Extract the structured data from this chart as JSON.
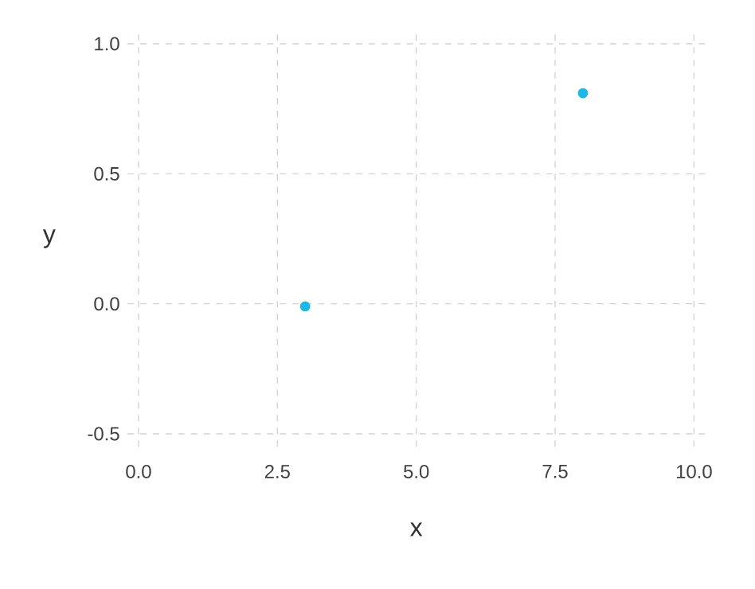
{
  "chart_data": {
    "type": "scatter",
    "xlabel": "x",
    "ylabel": "y",
    "x": [
      3,
      8
    ],
    "values": [
      -0.01,
      0.81
    ],
    "color": "#1fb6e8",
    "grid": true,
    "xlim": [
      -0.2,
      10.2
    ],
    "ylim": [
      -0.55,
      1.05
    ],
    "xticks": [
      {
        "value": 0,
        "label": "0.0"
      },
      {
        "value": 2.5,
        "label": "2.5"
      },
      {
        "value": 5,
        "label": "5.0"
      },
      {
        "value": 7.5,
        "label": "7.5"
      },
      {
        "value": 10,
        "label": "10.0"
      }
    ],
    "yticks": [
      {
        "value": -0.5,
        "label": "-0.5"
      },
      {
        "value": 0,
        "label": "0.0"
      },
      {
        "value": 0.5,
        "label": "0.5"
      },
      {
        "value": 1,
        "label": "1.0"
      }
    ]
  }
}
